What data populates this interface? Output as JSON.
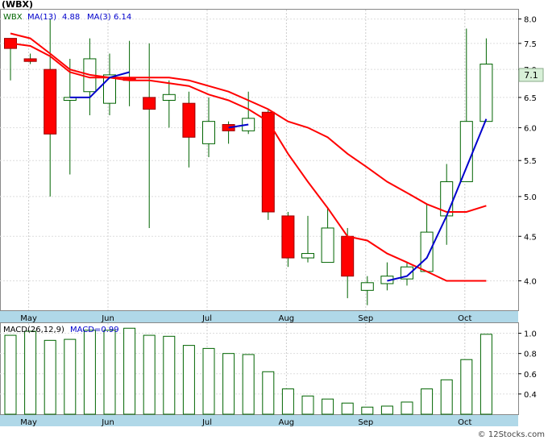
{
  "title": "(WBX)",
  "watermark": "© 12Stocks.com",
  "price_legend": {
    "ticker": "WBX",
    "ma13_label": "MA(13)",
    "ma13_value": "4.88",
    "ma3_label": "MA(3)",
    "ma3_value": "6.14"
  },
  "macd_legend": {
    "label": "MACD(26,12,9)",
    "value_label": "MACD=0.99"
  },
  "last_price_badge": "7.1",
  "colors": {
    "up_body": "#ffffff",
    "down_body": "#ff0000",
    "wick": "#006400",
    "ma13": "#ff0000",
    "ma3": "#0000cc",
    "axis_band": "#b0d8e8",
    "badge": "#d8f0d8",
    "macd_bar": "#006400"
  },
  "chart_data": [
    {
      "type": "candlestick",
      "name": "price",
      "y_axis": {
        "scale": "log",
        "range": [
          3.7,
          8.2
        ],
        "ticks": [
          "8.0",
          "7.5",
          "7.0",
          "6.5",
          "6.0",
          "5.5",
          "5.0",
          "4.5",
          "4.0"
        ]
      },
      "x_axis": {
        "month_labels": [
          "May",
          "Jun",
          "Jul",
          "Aug",
          "Sep",
          "Oct"
        ]
      },
      "candles": [
        {
          "o": 7.4,
          "h": 7.6,
          "l": 6.8,
          "c": 7.6,
          "dir": "down"
        },
        {
          "o": 7.2,
          "h": 7.3,
          "l": 7.1,
          "c": 7.15,
          "dir": "down"
        },
        {
          "o": 7.0,
          "h": 8.0,
          "l": 5.0,
          "c": 5.9,
          "dir": "down"
        },
        {
          "o": 6.45,
          "h": 7.2,
          "l": 5.3,
          "c": 6.5,
          "dir": "up"
        },
        {
          "o": 6.6,
          "h": 7.6,
          "l": 6.2,
          "c": 7.2,
          "dir": "up"
        },
        {
          "o": 6.4,
          "h": 7.3,
          "l": 6.2,
          "c": 6.9,
          "dir": "up"
        },
        {
          "o": 6.8,
          "h": 7.55,
          "l": 6.35,
          "c": 6.85,
          "dir": "down"
        },
        {
          "o": 6.5,
          "h": 7.5,
          "l": 4.6,
          "c": 6.3,
          "dir": "down"
        },
        {
          "o": 6.45,
          "h": 6.8,
          "l": 6.0,
          "c": 6.55,
          "dir": "up"
        },
        {
          "o": 6.4,
          "h": 6.6,
          "l": 5.4,
          "c": 5.85,
          "dir": "down"
        },
        {
          "o": 5.75,
          "h": 6.5,
          "l": 5.55,
          "c": 6.1,
          "dir": "up"
        },
        {
          "o": 6.05,
          "h": 6.1,
          "l": 5.75,
          "c": 5.95,
          "dir": "down"
        },
        {
          "o": 5.95,
          "h": 6.6,
          "l": 5.9,
          "c": 6.15,
          "dir": "up"
        },
        {
          "o": 6.25,
          "h": 6.3,
          "l": 4.7,
          "c": 4.8,
          "dir": "down"
        },
        {
          "o": 4.75,
          "h": 4.8,
          "l": 4.15,
          "c": 4.25,
          "dir": "down"
        },
        {
          "o": 4.25,
          "h": 4.75,
          "l": 4.2,
          "c": 4.3,
          "dir": "up"
        },
        {
          "o": 4.2,
          "h": 4.85,
          "l": 4.2,
          "c": 4.6,
          "dir": "up"
        },
        {
          "o": 4.5,
          "h": 4.6,
          "l": 3.82,
          "c": 4.05,
          "dir": "down"
        },
        {
          "o": 3.9,
          "h": 4.05,
          "l": 3.75,
          "c": 3.98,
          "dir": "up"
        },
        {
          "o": 3.97,
          "h": 4.2,
          "l": 3.9,
          "c": 4.05,
          "dir": "up"
        },
        {
          "o": 4.02,
          "h": 4.2,
          "l": 3.95,
          "c": 4.15,
          "dir": "up"
        },
        {
          "o": 4.1,
          "h": 4.9,
          "l": 4.1,
          "c": 4.55,
          "dir": "up"
        },
        {
          "o": 4.75,
          "h": 5.45,
          "l": 4.4,
          "c": 5.2,
          "dir": "up"
        },
        {
          "o": 5.2,
          "h": 7.8,
          "l": 5.2,
          "c": 6.1,
          "dir": "up"
        },
        {
          "o": 6.1,
          "h": 7.6,
          "l": 6.1,
          "c": 7.1,
          "dir": "up"
        }
      ],
      "series": [
        {
          "name": "MA(13)",
          "values": [
            7.7,
            7.6,
            7.3,
            7.0,
            6.9,
            6.85,
            6.85,
            6.85,
            6.85,
            6.8,
            6.7,
            6.6,
            6.45,
            6.3,
            6.1,
            6.0,
            5.85,
            5.6,
            5.4,
            5.2,
            5.05,
            4.9,
            4.8,
            4.8,
            4.88
          ]
        },
        {
          "name": "MA(3)",
          "values": [
            null,
            null,
            null,
            6.5,
            6.5,
            6.85,
            6.95,
            null,
            null,
            null,
            null,
            6.0,
            6.05,
            null,
            null,
            null,
            null,
            null,
            null,
            null,
            null,
            null,
            null,
            null,
            null
          ]
        },
        {
          "name": "MA(3) recent",
          "values": [
            null,
            null,
            null,
            null,
            null,
            null,
            null,
            null,
            null,
            null,
            null,
            null,
            null,
            null,
            null,
            null,
            null,
            null,
            null,
            4.0,
            4.05,
            4.25,
            4.75,
            5.4,
            6.14
          ]
        },
        {
          "name": "MA(13) trend",
          "values": [
            7.5,
            7.45,
            7.25,
            6.95,
            6.85,
            6.85,
            6.8,
            6.8,
            6.75,
            6.7,
            6.55,
            6.45,
            6.3,
            6.1,
            5.6,
            5.2,
            4.85,
            4.5,
            4.45,
            4.3,
            4.2,
            4.1,
            4.0,
            4.0,
            4.0
          ]
        }
      ]
    },
    {
      "type": "bar",
      "name": "macd",
      "y_axis": {
        "range": [
          0.2,
          1.1
        ],
        "ticks": [
          "1.0",
          "0.8",
          "0.6",
          "0.4"
        ]
      },
      "values": [
        0.98,
        1.02,
        0.93,
        0.94,
        1.03,
        1.03,
        1.05,
        0.98,
        0.97,
        0.88,
        0.85,
        0.8,
        0.79,
        0.62,
        0.45,
        0.38,
        0.35,
        0.31,
        0.27,
        0.28,
        0.32,
        0.45,
        0.54,
        0.74,
        0.99
      ]
    }
  ]
}
